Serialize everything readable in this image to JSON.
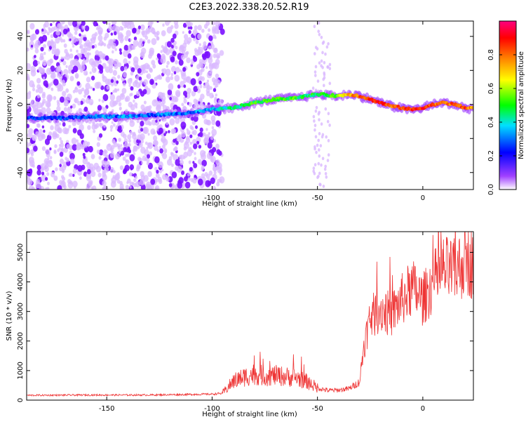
{
  "title": "C2E3.2022.338.20.52.R19",
  "chart_data": [
    {
      "type": "heatmap",
      "title": "C2E3.2022.338.20.52.R19",
      "xlabel": "Height of straight line (km)",
      "ylabel": "Frequency (Hz)",
      "xlim": [
        -188,
        24
      ],
      "ylim": [
        -50,
        49
      ],
      "xticks": [
        -150,
        -100,
        -50,
        0
      ],
      "yticks": [
        -40,
        -20,
        0,
        20,
        40
      ],
      "colorbar": {
        "label": "Normalized spectral amplitude",
        "range": [
          0,
          1
        ],
        "ticks": [
          0.0,
          0.2,
          0.4,
          0.6,
          0.8
        ],
        "tick_labels": [
          "0.0",
          "0.2",
          "0.4",
          "0.6",
          "0.8"
        ],
        "colors": [
          "#ffffff",
          "#7a00ff",
          "#0000ff",
          "#00e0ff",
          "#00ff00",
          "#ffff00",
          "#ff8000",
          "#ff0000",
          "#ff0080"
        ]
      },
      "ridge": {
        "x": [
          -188,
          -170,
          -155,
          -140,
          -125,
          -110,
          -100,
          -90,
          -80,
          -70,
          -60,
          -50,
          -40,
          -35,
          -30,
          -25,
          -20,
          -15,
          -10,
          -5,
          0,
          5,
          10,
          15,
          20,
          24
        ],
        "freq": [
          -8,
          -8,
          -7,
          -7,
          -6,
          -5,
          -3,
          -2,
          1,
          3,
          4,
          6,
          5,
          6,
          5,
          3,
          1,
          -1,
          -2,
          -3,
          -2,
          0,
          1,
          0,
          -2,
          -2
        ],
        "amplitude": [
          0.22,
          0.25,
          0.3,
          0.3,
          0.28,
          0.3,
          0.35,
          0.45,
          0.5,
          0.55,
          0.5,
          0.45,
          0.55,
          0.72,
          0.8,
          0.85,
          0.85,
          0.8,
          0.82,
          0.85,
          0.85,
          0.8,
          0.82,
          0.8,
          0.85,
          0.7
        ]
      }
    },
    {
      "type": "line",
      "xlabel": "Height of straight line (km)",
      "ylabel": "SNR (10 * v/v)",
      "xlim": [
        -188,
        24
      ],
      "ylim": [
        0,
        5700
      ],
      "xticks": [
        -150,
        -100,
        -50,
        0
      ],
      "yticks": [
        0,
        1000,
        2000,
        3000,
        4000,
        5000
      ],
      "color": "#ee3333",
      "series": [
        {
          "name": "SNR",
          "x": [
            -188,
            -160,
            -130,
            -100,
            -95,
            -90,
            -85,
            -80,
            -75,
            -70,
            -65,
            -60,
            -55,
            -50,
            -45,
            -40,
            -35,
            -30,
            -28,
            -25,
            -20,
            -15,
            -10,
            -5,
            0,
            5,
            10,
            15,
            20,
            24
          ],
          "y": [
            160,
            170,
            170,
            200,
            230,
            600,
            750,
            850,
            780,
            800,
            760,
            730,
            600,
            400,
            320,
            330,
            380,
            600,
            1800,
            2700,
            3000,
            2800,
            3300,
            3700,
            3300,
            3900,
            4300,
            4200,
            4600,
            4500
          ]
        }
      ]
    }
  ]
}
